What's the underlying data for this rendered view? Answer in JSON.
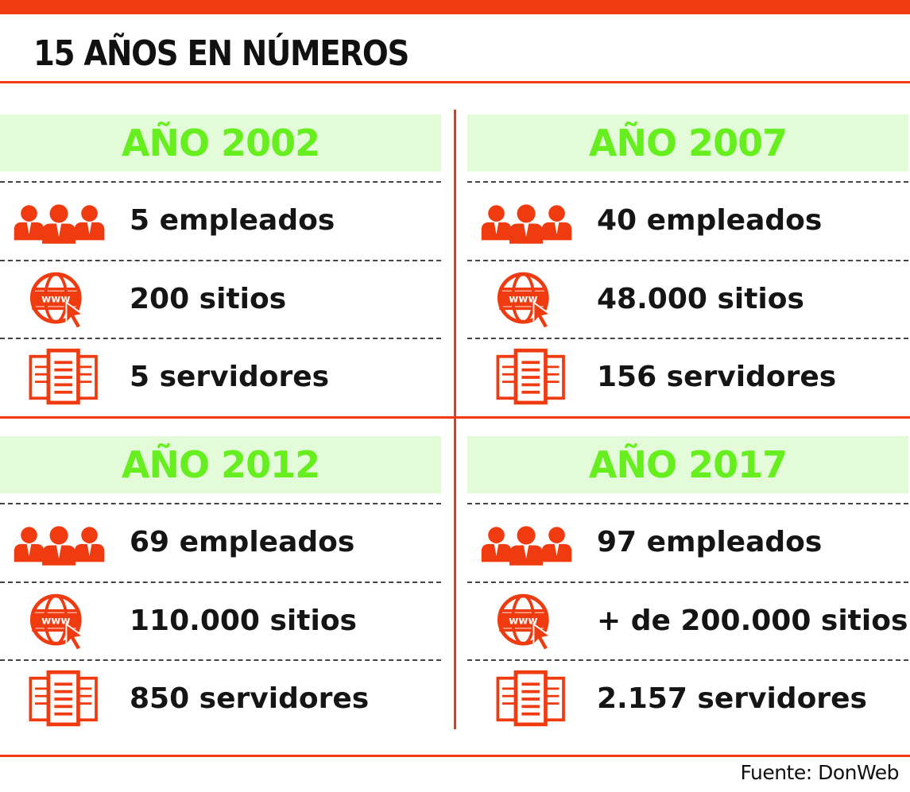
{
  "title": "15 AÑOS EN NÚMEROS",
  "colors": {
    "accent": "#f03a0f",
    "header_bg": "#e3fbd9",
    "header_text": "#66ee1f",
    "text": "#151515"
  },
  "panels": [
    {
      "year": "AÑO 2002",
      "stats": [
        {
          "icon": "people-icon",
          "label": "5 empleados"
        },
        {
          "icon": "www-globe-icon",
          "label": "200 sitios"
        },
        {
          "icon": "servers-icon",
          "label": "5 servidores"
        }
      ]
    },
    {
      "year": "AÑO 2007",
      "stats": [
        {
          "icon": "people-icon",
          "label": "40 empleados"
        },
        {
          "icon": "www-globe-icon",
          "label": "48.000 sitios"
        },
        {
          "icon": "servers-icon",
          "label": "156 servidores"
        }
      ]
    },
    {
      "year": "AÑO 2012",
      "stats": [
        {
          "icon": "people-icon",
          "label": "69 empleados"
        },
        {
          "icon": "www-globe-icon",
          "label": "110.000 sitios"
        },
        {
          "icon": "servers-icon",
          "label": "850 servidores"
        }
      ]
    },
    {
      "year": "AÑO 2017",
      "stats": [
        {
          "icon": "people-icon",
          "label": "97 empleados"
        },
        {
          "icon": "www-globe-icon",
          "label": "+ de 200.000 sitios"
        },
        {
          "icon": "servers-icon",
          "label": "2.157 servidores"
        }
      ]
    }
  ],
  "source": "Fuente: DonWeb"
}
